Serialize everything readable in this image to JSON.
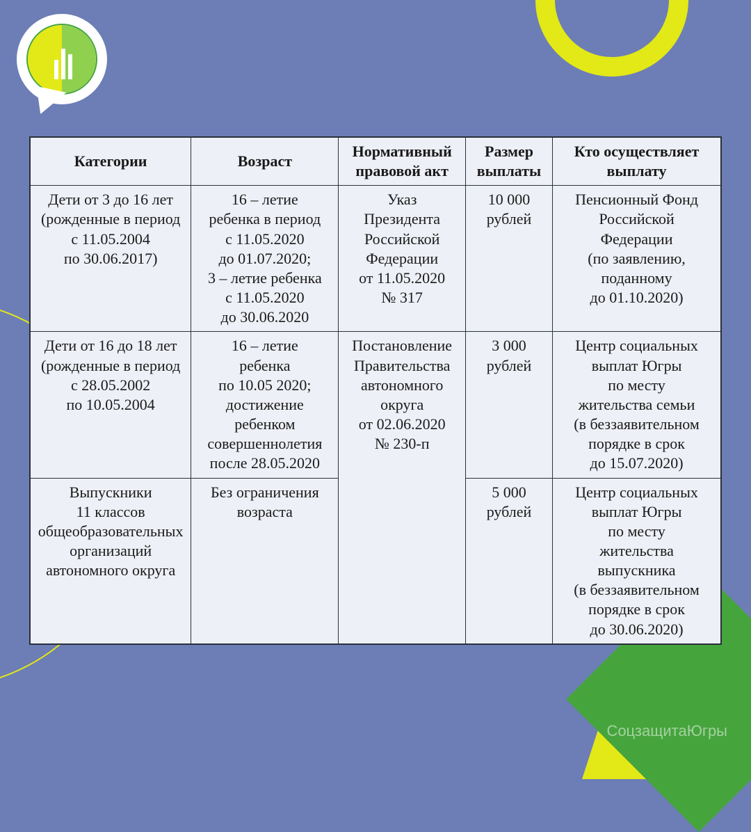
{
  "watermark": "СоцзащитаЮгры",
  "table": {
    "columns": [
      "Категории",
      "Возраст",
      "Нормативный\nправовой акт",
      "Размер\nвыплаты",
      "Кто осуществляет\nвыплату"
    ],
    "rows": [
      {
        "category": "Дети от 3 до 16 лет\n(рожденные в период\nс 11.05.2004\nпо 30.06.2017)",
        "age": "16 – летие\nребенка в период\nс 11.05.2020\nдо 01.07.2020;\n3 – летие ребенка\nс 11.05.2020\nдо 30.06.2020",
        "act": "Указ\nПрезидента\nРоссийской\nФедерации\nот 11.05.2020\n№ 317",
        "amount": "10 000\nрублей",
        "payer": "Пенсионный Фонд\nРоссийской\nФедерации\n(по заявлению,\nподанному\nдо 01.10.2020)"
      },
      {
        "category": "Дети от 16 до 18 лет\n(рожденные в период\nс 28.05.2002\nпо 10.05.2004",
        "age": "16 – летие\nребенка\nпо 10.05 2020;\nдостижение\nребенком\nсовершеннолетия\nпосле 28.05.2020",
        "act": "Постановление\nПравительства\nавтономного\nокруга\nот 02.06.2020\n№ 230-п",
        "amount": "3 000\nрублей",
        "payer": "Центр социальных\nвыплат Югры\nпо месту\nжительства семьи\n(в беззаявительном\nпорядке в срок\nдо 15.07.2020)"
      },
      {
        "category": "Выпускники\n11 классов\nобщеобразовательных\nорганизаций\nавтономного округа",
        "age": "Без ограничения\nвозраста",
        "amount": "5 000\nрублей",
        "payer": "Центр социальных\nвыплат Югры\nпо месту\nжительства\nвыпускника\n(в беззаявительном\nпорядке в срок\nдо 30.06.2020)"
      }
    ]
  },
  "colors": {
    "page_bg": "#6c7eb5",
    "table_bg": "#eef0f7",
    "border": "#2a2f3a",
    "accent_yellow": "#e3e817",
    "accent_green": "#46a43d"
  }
}
